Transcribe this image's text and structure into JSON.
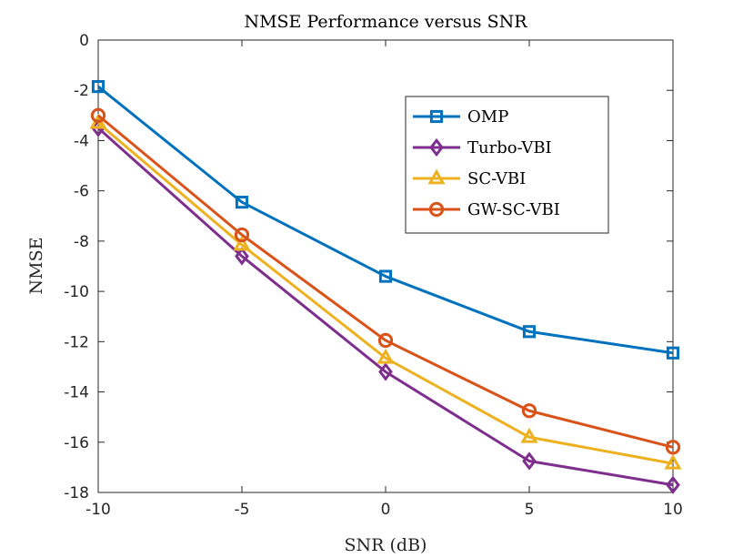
{
  "chart_data": {
    "type": "line",
    "title": "NMSE Performance versus SNR",
    "xlabel": "SNR (dB)",
    "ylabel": "NMSE",
    "x": [
      -10,
      -5,
      0,
      5,
      10
    ],
    "xlim": [
      -10,
      10
    ],
    "ylim": [
      -18,
      0
    ],
    "xticks": [
      "-10",
      "-5",
      "0",
      "5",
      "10"
    ],
    "yticks": [
      "0",
      "-2",
      "-4",
      "-6",
      "-8",
      "-10",
      "-12",
      "-14",
      "-16",
      "-18"
    ],
    "grid": false,
    "legend_position": "top-right",
    "series": [
      {
        "name": "OMP",
        "marker": "square",
        "color": "#0072BD",
        "values": [
          -1.85,
          -6.45,
          -9.4,
          -11.6,
          -12.45
        ]
      },
      {
        "name": "Turbo-VBI",
        "marker": "diamond",
        "color": "#7E2F8E",
        "values": [
          -3.5,
          -8.6,
          -13.2,
          -16.75,
          -17.7
        ]
      },
      {
        "name": "SC-VBI",
        "marker": "triangle",
        "color": "#EDB120",
        "values": [
          -3.3,
          -8.15,
          -12.65,
          -15.8,
          -16.85
        ]
      },
      {
        "name": "GW-SC-VBI",
        "marker": "circle",
        "color": "#D95319",
        "values": [
          -3.0,
          -7.75,
          -11.95,
          -14.75,
          -16.2
        ]
      }
    ]
  }
}
